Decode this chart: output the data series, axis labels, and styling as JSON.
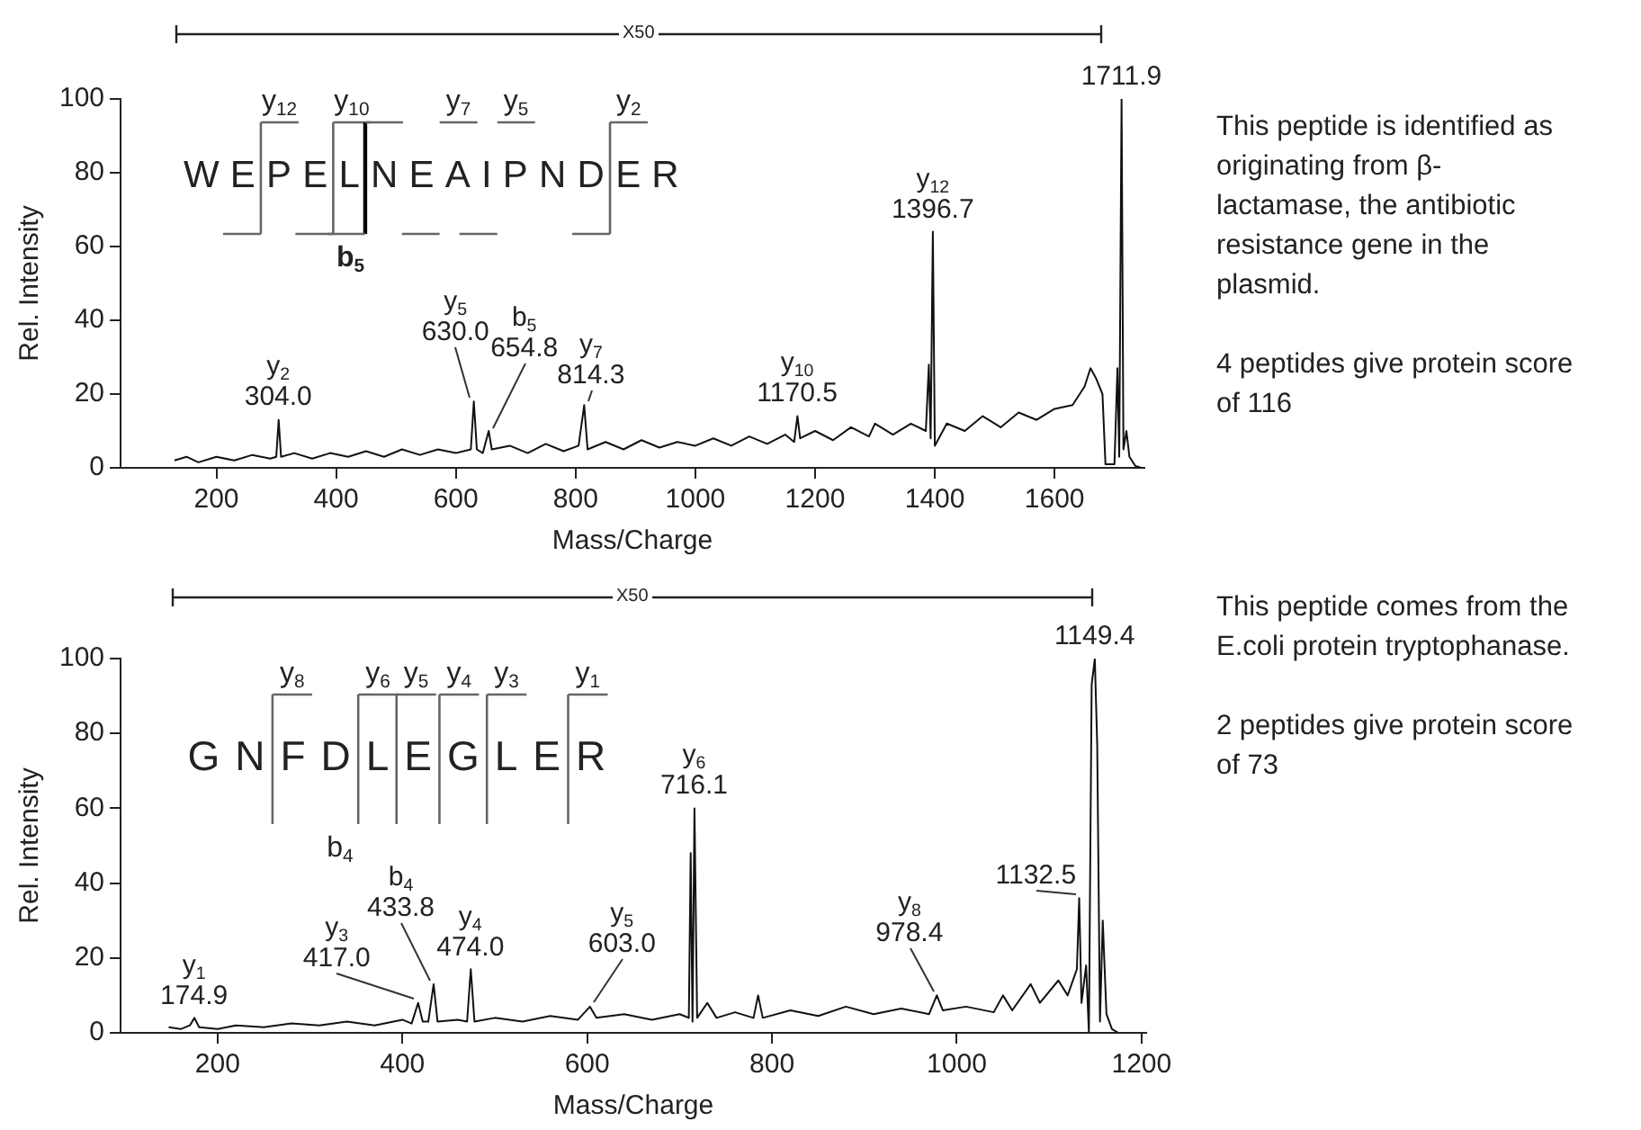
{
  "chart_data": [
    {
      "type": "line",
      "xlabel": "Mass/Charge",
      "ylabel": "Rel. Intensity",
      "color": "#111111",
      "marker": "none",
      "grid": false,
      "legend": false,
      "xlim": [
        40,
        1750
      ],
      "xticks": [
        200,
        400,
        600,
        800,
        1000,
        1200,
        1400,
        1600
      ],
      "ylim": [
        0,
        100
      ],
      "yticks": [
        0,
        20,
        40,
        60,
        80,
        100
      ],
      "x": [
        130,
        150,
        170,
        200,
        230,
        260,
        290,
        300,
        304,
        308,
        330,
        360,
        390,
        420,
        450,
        480,
        510,
        540,
        570,
        600,
        625,
        630,
        635,
        645,
        654.8,
        660,
        690,
        720,
        750,
        780,
        805,
        814.3,
        820,
        850,
        880,
        910,
        940,
        970,
        1000,
        1030,
        1060,
        1090,
        1120,
        1150,
        1165,
        1170.5,
        1175,
        1200,
        1230,
        1260,
        1290,
        1300,
        1330,
        1360,
        1385,
        1390,
        1393,
        1396.7,
        1400,
        1420,
        1450,
        1480,
        1510,
        1540,
        1570,
        1600,
        1630,
        1650,
        1660,
        1670,
        1680,
        1685,
        1700,
        1705,
        1708,
        1711.9,
        1715,
        1720,
        1725,
        1735,
        1745
      ],
      "values": [
        2,
        3,
        1.5,
        3,
        2,
        3.5,
        2.5,
        3,
        13,
        3,
        4,
        2.5,
        4,
        3,
        4.5,
        3,
        5,
        3.5,
        5,
        4,
        5,
        18,
        5,
        4,
        10,
        5,
        6,
        4,
        6.5,
        4.5,
        6,
        17,
        5,
        7,
        5,
        7.5,
        5.5,
        7,
        6,
        8,
        6,
        8.5,
        6.5,
        9,
        7,
        14,
        8,
        10,
        7.5,
        11,
        8.5,
        12,
        9,
        12,
        10,
        28,
        8,
        64,
        6,
        12,
        10,
        14,
        11,
        15,
        13,
        16,
        17,
        22,
        27,
        24,
        20,
        1,
        1,
        27,
        3,
        100,
        5,
        10,
        3,
        0.5,
        0
      ],
      "annotations": [
        "WEPELNEAIPNDER",
        "y$_{12}$",
        "y$_{10}$",
        "b$_{5}$",
        "y$_{7}$",
        "y$_{5}$",
        "y$_{2}$",
        "X50",
        "This peptide is identified as originating from β-lactamase, the antibiotic resistance gene in the plasmid.",
        "4 peptides give protein score of 116",
        {
          "text": "y$_{2}$\n304.0",
          "x": 304,
          "y": 13
        },
        {
          "text": "y$_{5}$\n630.0",
          "x": 630,
          "y": 18
        },
        {
          "text": "b$_{5}$\n654.8",
          "x": 654.8,
          "y": 10
        },
        {
          "text": "y$_{7}$\n814.3",
          "x": 814.3,
          "y": 17
        },
        {
          "text": "y$_{10}$\n1170.5",
          "x": 1170.5,
          "y": 14
        },
        {
          "text": "y$_{12}$\n1396.7",
          "x": 1396.7,
          "y": 64
        },
        {
          "text": "1711.9",
          "x": 1711.9,
          "y": 100
        }
      ]
    },
    {
      "type": "line",
      "xlabel": "Mass/Charge",
      "ylabel": "Rel. Intensity",
      "color": "#111111",
      "marker": "none",
      "grid": false,
      "legend": false,
      "xlim": [
        95,
        1205
      ],
      "xticks": [
        200,
        400,
        600,
        800,
        1000,
        1200
      ],
      "ylim": [
        0,
        100
      ],
      "yticks": [
        0,
        20,
        40,
        60,
        80,
        100
      ],
      "x": [
        147,
        160,
        170,
        174.9,
        180,
        200,
        220,
        250,
        280,
        310,
        340,
        370,
        400,
        410,
        417,
        422,
        428,
        433.8,
        438,
        460,
        470,
        474,
        478,
        500,
        530,
        560,
        590,
        603,
        610,
        640,
        670,
        700,
        710,
        712,
        714,
        716.1,
        719,
        730,
        740,
        760,
        780,
        785,
        790,
        820,
        850,
        880,
        910,
        940,
        970,
        978.4,
        985,
        1010,
        1040,
        1050,
        1060,
        1080,
        1090,
        1110,
        1120,
        1130,
        1132.5,
        1135,
        1140,
        1143,
        1146,
        1149.4,
        1152,
        1155,
        1158,
        1162,
        1168,
        1175
      ],
      "values": [
        1.5,
        1,
        2,
        4,
        1.5,
        1,
        2,
        1.5,
        2.5,
        2,
        3,
        2,
        3.5,
        2.5,
        8,
        3,
        3,
        13,
        3,
        3.5,
        3,
        17,
        3,
        4,
        3,
        4.5,
        3.5,
        7,
        4,
        5,
        3.5,
        5,
        4,
        48,
        3,
        60,
        4,
        8,
        4,
        5.5,
        4,
        10,
        4,
        6,
        4.5,
        7,
        5,
        6.5,
        5,
        10,
        6,
        7,
        5.5,
        10,
        6,
        13,
        8,
        14,
        10,
        17,
        36,
        8,
        18,
        0,
        93,
        100,
        77,
        3,
        30,
        5,
        1,
        0
      ],
      "annotations": [
        "GNFDLEGLER",
        "y$_{8}$",
        "y$_{6}$",
        "y$_{5}$",
        "y$_{4}$",
        "y$_{3}$",
        "y$_{1}$",
        "b$_{4}$",
        "X50",
        "This peptide comes from the E.coli protein tryptophanase.",
        "2 peptides give protein score of 73",
        {
          "text": "y$_{1}$\n174.9",
          "x": 174.9,
          "y": 4
        },
        {
          "text": "y$_{3}$\n417.0",
          "x": 417,
          "y": 8
        },
        {
          "text": "b$_{4}$\n433.8",
          "x": 433.8,
          "y": 13
        },
        {
          "text": "y$_{4}$\n474.0",
          "x": 474,
          "y": 17
        },
        {
          "text": "y$_{5}$\n603.0",
          "x": 603,
          "y": 7
        },
        {
          "text": "y$_{6}$\n716.1",
          "x": 716.1,
          "y": 60
        },
        {
          "text": "y$_{8}$\n978.4",
          "x": 978.4,
          "y": 10
        },
        {
          "text": "1132.5",
          "x": 1132.5,
          "y": 36
        },
        {
          "text": "1149.4",
          "x": 1149.4,
          "y": 100
        }
      ]
    }
  ]
}
